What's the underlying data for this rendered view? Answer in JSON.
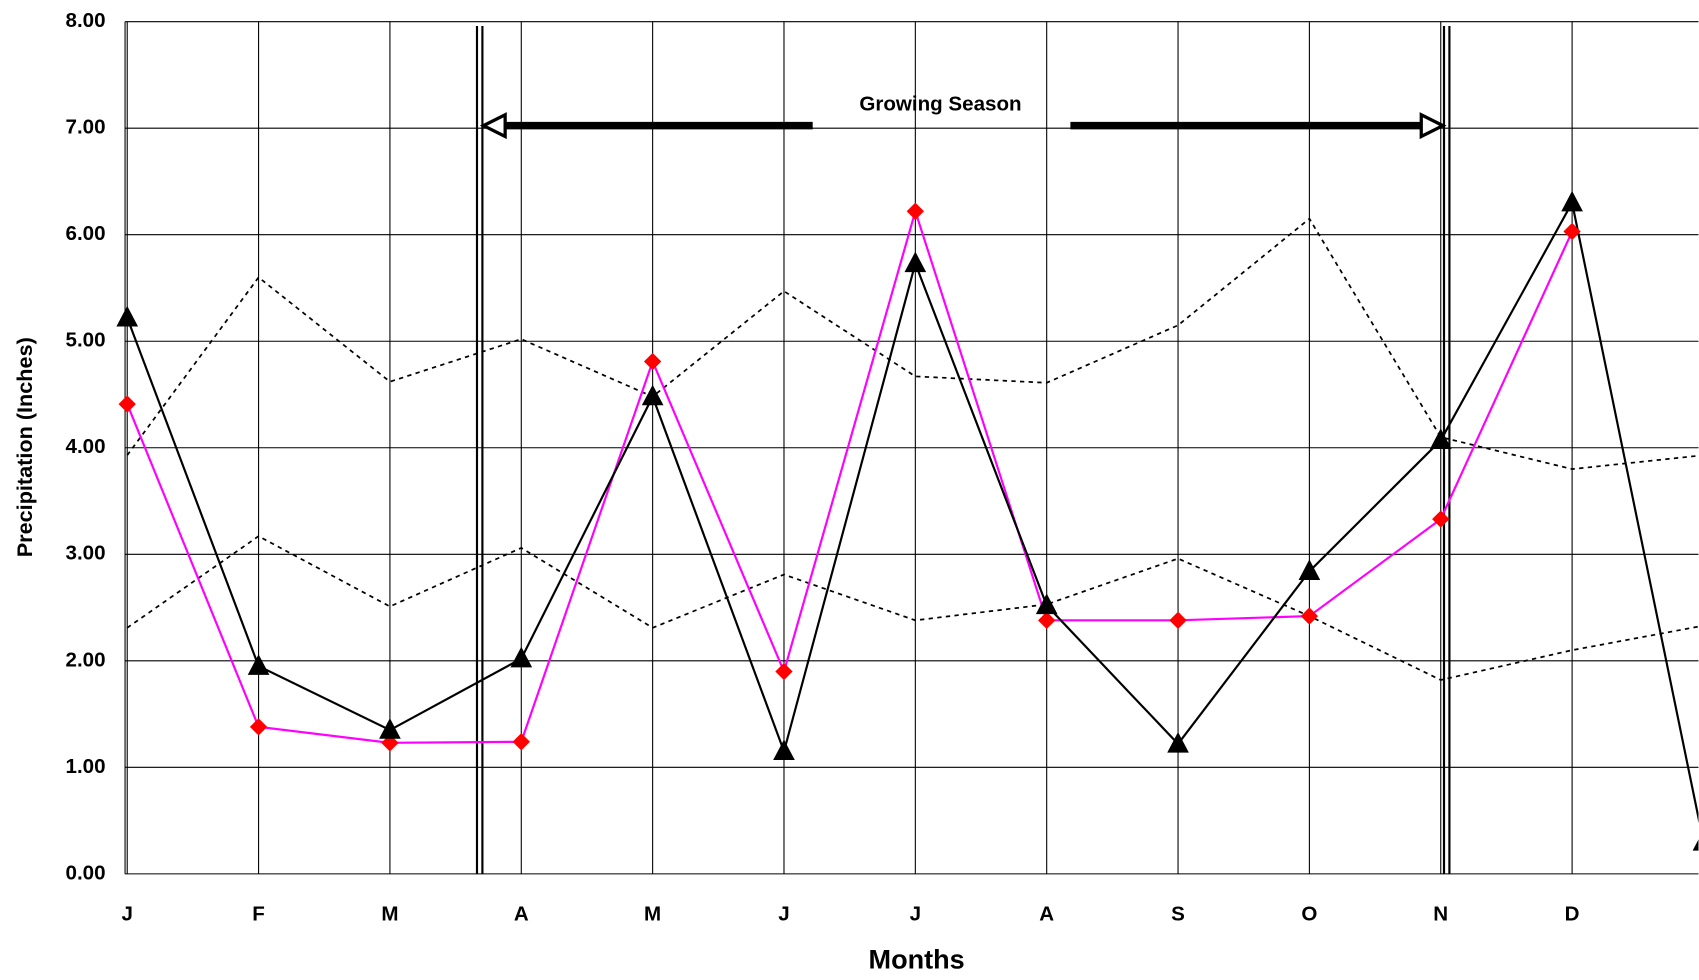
{
  "chart_data": {
    "type": "line",
    "annotation": "Growing Season",
    "xlabel": "Months",
    "ylabel": "Precipitation (Inches)",
    "categories": [
      "J",
      "F",
      "M",
      "A",
      "M",
      "J",
      "J",
      "A",
      "S",
      "O",
      "N",
      "D",
      null
    ],
    "ylim": [
      0,
      8
    ],
    "yticks": [
      {
        "value": 0,
        "label": "0.00"
      },
      {
        "value": 1,
        "label": "1.00"
      },
      {
        "value": 2,
        "label": "2.00"
      },
      {
        "value": 3,
        "label": "3.00"
      },
      {
        "value": 4,
        "label": "4.00"
      },
      {
        "value": 5,
        "label": "5.00"
      },
      {
        "value": 6,
        "label": "6.00"
      },
      {
        "value": 7,
        "label": "7.00"
      },
      {
        "value": 8,
        "label": "8.00"
      }
    ],
    "grid": true,
    "series": [
      {
        "color": "#000000",
        "linestyle": "dotted",
        "values": [
          3.93,
          5.6,
          4.62,
          5.02,
          4.48,
          5.47,
          4.67,
          4.61,
          5.15,
          6.15,
          4.1,
          3.8,
          3.93
        ]
      },
      {
        "color": "#000000",
        "linestyle": "dotted",
        "values": [
          2.31,
          3.17,
          2.51,
          3.06,
          2.31,
          2.81,
          2.38,
          2.53,
          2.96,
          2.42,
          1.82,
          2.1,
          2.33
        ]
      },
      {
        "color": "#ff00ff",
        "marker": "diamond",
        "marker_color": "#ff0000",
        "values": [
          4.41,
          1.38,
          1.23,
          1.24,
          4.81,
          1.9,
          6.22,
          2.38,
          2.38,
          2.42,
          3.33,
          6.03,
          null
        ]
      },
      {
        "color": "#000000",
        "marker": "triangle",
        "marker_color": "#000000",
        "values": [
          5.22,
          1.95,
          1.35,
          2.02,
          4.48,
          1.15,
          5.73,
          2.52,
          1.22,
          2.84,
          4.07,
          6.3,
          0.3
        ]
      }
    ]
  }
}
